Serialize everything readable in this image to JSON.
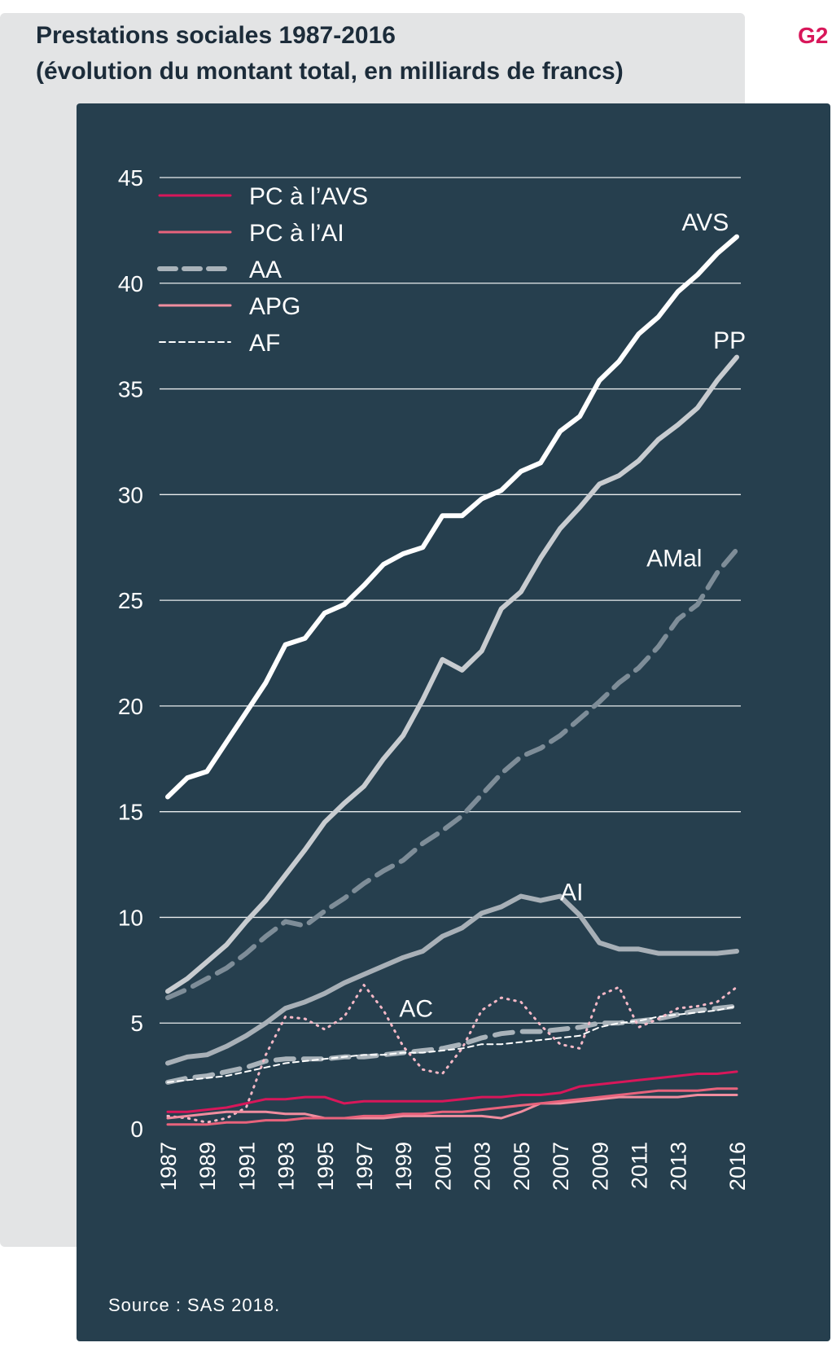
{
  "header": {
    "title_line1": "Prestations sociales 1987-2016",
    "title_line2": "(évolution du montant total, en milliards de francs)",
    "figure_tag": "G2"
  },
  "source": "Source : SAS 2018.",
  "colors": {
    "outer_background": "#e3e4e5",
    "panel_background": "#263f4e",
    "title": "#1c2c3a",
    "figure_tag": "#d8175a",
    "avs": "#ffffff",
    "pp": "#c8ccd0",
    "amal": "#7e8d98",
    "ai": "#a8b0b7",
    "ac": "#f4b8c6",
    "pc_avs": "#d8175a",
    "pc_ai": "#e8637c",
    "aa": "#a9b3ba",
    "apg": "#f08d9f",
    "af": "#ffffff",
    "gridline": "#ffffff"
  },
  "chart_data": {
    "type": "line",
    "title": "Prestations sociales 1987-2016",
    "subtitle": "(évolution du montant total, en milliards de francs)",
    "xlabel": "",
    "ylabel": "",
    "ylim": [
      0,
      45
    ],
    "yticks": [
      0,
      5,
      10,
      15,
      20,
      25,
      30,
      35,
      40,
      45
    ],
    "grid": true,
    "legend_position": "top-left",
    "x": [
      1987,
      1988,
      1989,
      1990,
      1991,
      1992,
      1993,
      1994,
      1995,
      1996,
      1997,
      1998,
      1999,
      2000,
      2001,
      2002,
      2003,
      2004,
      2005,
      2006,
      2007,
      2008,
      2009,
      2010,
      2011,
      2012,
      2013,
      2014,
      2015,
      2016
    ],
    "xtick_labels": [
      "1987",
      "1989",
      "1991",
      "1993",
      "1995",
      "1997",
      "1999",
      "2001",
      "2003",
      "2005",
      "2007",
      "2009",
      "2011",
      "2013",
      "2016"
    ],
    "series": [
      {
        "key": "avs",
        "name": "AVS",
        "label_placement": "inline",
        "style": "solid",
        "width": 6,
        "values": [
          15.7,
          16.6,
          16.9,
          18.3,
          19.7,
          21.1,
          22.9,
          23.2,
          24.4,
          24.8,
          25.7,
          26.7,
          27.2,
          27.5,
          29.0,
          29.0,
          29.8,
          30.2,
          31.1,
          31.5,
          33.0,
          33.7,
          35.4,
          36.3,
          37.6,
          38.4,
          39.6,
          40.4,
          41.4,
          42.2
        ],
        "label_x": 2013.2,
        "label_y": 42.5
      },
      {
        "key": "pp",
        "name": "PP",
        "label_placement": "inline",
        "style": "solid",
        "width": 6,
        "values": [
          6.5,
          7.1,
          7.9,
          8.7,
          9.8,
          10.8,
          12.0,
          13.2,
          14.5,
          15.4,
          16.2,
          17.5,
          18.6,
          20.3,
          22.2,
          21.7,
          22.6,
          24.6,
          25.4,
          27.0,
          28.4,
          29.4,
          30.5,
          30.9,
          31.6,
          32.6,
          33.3,
          34.1,
          35.4,
          36.5
        ],
        "label_x": 2014.8,
        "label_y": 36.9
      },
      {
        "key": "amal",
        "name": "AMal",
        "label_placement": "inline",
        "style": "dashed",
        "width": 6,
        "values": [
          6.2,
          6.6,
          7.1,
          7.6,
          8.3,
          9.1,
          9.8,
          9.6,
          10.3,
          10.9,
          11.6,
          12.2,
          12.7,
          13.5,
          14.1,
          14.8,
          15.8,
          16.8,
          17.6,
          18.0,
          18.6,
          19.4,
          20.2,
          21.1,
          21.8,
          22.8,
          24.1,
          24.8,
          26.3,
          27.4
        ],
        "label_x": 2011.4,
        "label_y": 26.6
      },
      {
        "key": "ai",
        "name": "AI",
        "label_placement": "inline",
        "style": "solid",
        "width": 6,
        "values": [
          3.1,
          3.4,
          3.5,
          3.9,
          4.4,
          5.0,
          5.7,
          6.0,
          6.4,
          6.9,
          7.3,
          7.7,
          8.1,
          8.4,
          9.1,
          9.5,
          10.2,
          10.5,
          11.0,
          10.8,
          11.0,
          10.1,
          8.8,
          8.5,
          8.5,
          8.3,
          8.3,
          8.3,
          8.3,
          8.4
        ],
        "label_x": 2007.0,
        "label_y": 10.8
      },
      {
        "key": "ac",
        "name": "AC",
        "label_placement": "inline",
        "style": "dotted",
        "width": 3,
        "values": [
          0.6,
          0.5,
          0.3,
          0.5,
          1.0,
          3.5,
          5.3,
          5.2,
          4.7,
          5.3,
          6.8,
          5.6,
          3.9,
          2.8,
          2.6,
          3.8,
          5.6,
          6.2,
          6.0,
          4.9,
          4.0,
          3.8,
          6.3,
          6.7,
          4.8,
          5.2,
          5.7,
          5.8,
          6.0,
          6.7
        ],
        "label_x": 1998.8,
        "label_y": 5.3
      },
      {
        "key": "pc_avs",
        "name": "PC à l’AVS",
        "label_placement": "legend",
        "style": "solid",
        "width": 3,
        "values": [
          0.8,
          0.8,
          0.9,
          1.0,
          1.2,
          1.4,
          1.4,
          1.5,
          1.5,
          1.2,
          1.3,
          1.3,
          1.3,
          1.3,
          1.3,
          1.4,
          1.5,
          1.5,
          1.6,
          1.6,
          1.7,
          2.0,
          2.1,
          2.2,
          2.3,
          2.4,
          2.5,
          2.6,
          2.6,
          2.7
        ]
      },
      {
        "key": "pc_ai",
        "name": "PC à l’AI",
        "label_placement": "legend",
        "style": "solid",
        "width": 3,
        "values": [
          0.2,
          0.2,
          0.2,
          0.3,
          0.3,
          0.4,
          0.4,
          0.5,
          0.5,
          0.5,
          0.6,
          0.6,
          0.7,
          0.7,
          0.8,
          0.8,
          0.9,
          1.0,
          1.1,
          1.2,
          1.3,
          1.4,
          1.5,
          1.6,
          1.7,
          1.8,
          1.8,
          1.8,
          1.9,
          1.9
        ]
      },
      {
        "key": "aa",
        "name": "AA",
        "label_placement": "legend",
        "style": "dashed",
        "width": 6,
        "values": [
          2.2,
          2.4,
          2.5,
          2.7,
          2.9,
          3.2,
          3.3,
          3.3,
          3.3,
          3.4,
          3.4,
          3.5,
          3.6,
          3.7,
          3.8,
          4.0,
          4.3,
          4.5,
          4.6,
          4.6,
          4.7,
          4.8,
          5.0,
          5.0,
          5.1,
          5.2,
          5.4,
          5.6,
          5.7,
          5.8
        ]
      },
      {
        "key": "apg",
        "name": "APG",
        "label_placement": "legend",
        "style": "solid",
        "width": 3,
        "values": [
          0.5,
          0.6,
          0.7,
          0.8,
          0.8,
          0.8,
          0.7,
          0.7,
          0.5,
          0.5,
          0.5,
          0.5,
          0.6,
          0.6,
          0.6,
          0.6,
          0.6,
          0.5,
          0.8,
          1.2,
          1.2,
          1.3,
          1.4,
          1.5,
          1.5,
          1.5,
          1.5,
          1.6,
          1.6,
          1.6
        ]
      },
      {
        "key": "af",
        "name": "AF",
        "label_placement": "legend",
        "style": "short-dash",
        "width": 2,
        "values": [
          2.2,
          2.3,
          2.4,
          2.5,
          2.7,
          2.9,
          3.1,
          3.2,
          3.3,
          3.4,
          3.5,
          3.5,
          3.6,
          3.6,
          3.7,
          3.8,
          4.0,
          4.0,
          4.1,
          4.2,
          4.3,
          4.4,
          4.8,
          5.0,
          5.1,
          5.3,
          5.4,
          5.5,
          5.6,
          5.8
        ]
      }
    ]
  }
}
